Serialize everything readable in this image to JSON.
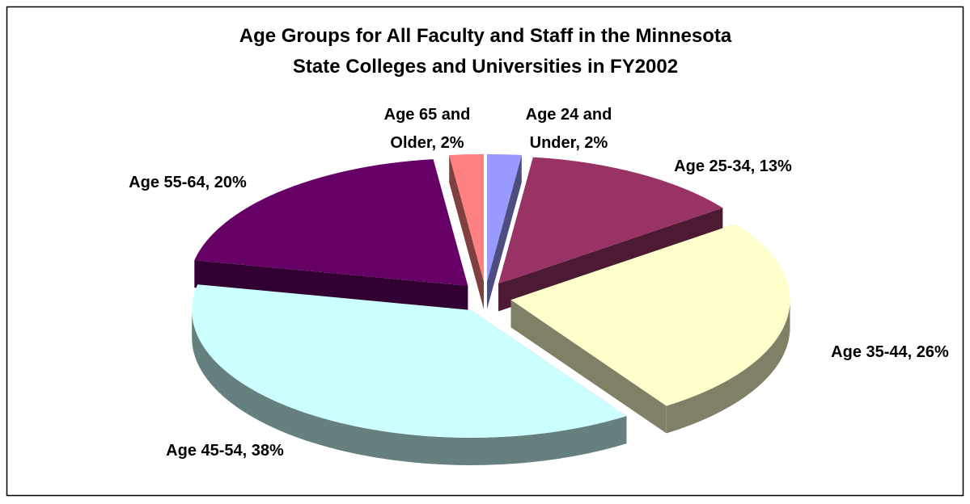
{
  "chart_data": {
    "type": "pie",
    "title": [
      "Age Groups for All Faculty and Staff in the Minnesota",
      "State Colleges and Universities in FY2002"
    ],
    "categories": [
      "Age 24 and Under",
      "Age 25-34",
      "Age 35-44",
      "Age 45-54",
      "Age 55-64",
      "Age 65 and Older"
    ],
    "values": [
      2,
      13,
      26,
      38,
      20,
      2
    ],
    "value_labels": [
      "2%",
      "13%",
      "26%",
      "38%",
      "20%",
      "2%"
    ],
    "colors": [
      "#9999ff",
      "#993366",
      "#ffffcc",
      "#ccffff",
      "#660066",
      "#ff8080"
    ],
    "side_colors": [
      "#4d4d80",
      "#4d1a33",
      "#808066",
      "#668080",
      "#330033",
      "#804040"
    ],
    "legend": false
  }
}
